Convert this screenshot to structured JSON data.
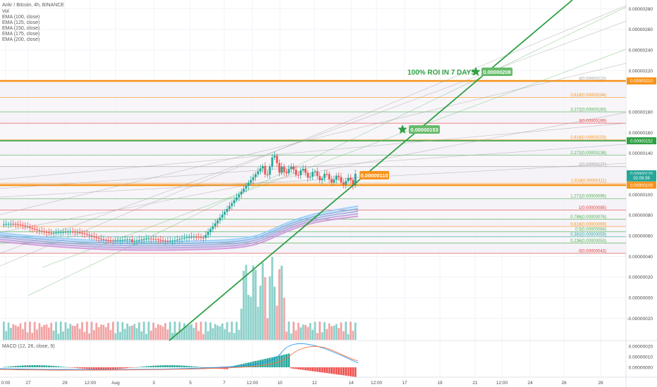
{
  "chart_data": {
    "type": "candlestick",
    "title": "Ankr / Bitcoin, 4h, BINANCE",
    "indicators": [
      "Vol",
      "EMA (100, close)",
      "EMA (125, close)",
      "EMA (150, close)",
      "EMA (175, close)",
      "EMA (200, close)"
    ],
    "macd_label": "MACD (12, 26, close, 9)",
    "price_axis": {
      "ticks": [
        "0.00000280",
        "0.00000260",
        "0.00000240",
        "0.00000220",
        "0.00000180",
        "0.00000160",
        "0.00000140",
        "0.00000100",
        "0.00000080",
        "0.00000060",
        "0.00000040",
        "0.00000020",
        "0.00000000",
        "-0.00000020"
      ],
      "tick_values": [
        280,
        260,
        240,
        220,
        180,
        160,
        140,
        100,
        80,
        60,
        40,
        20,
        0,
        -20
      ]
    },
    "macd_axis": {
      "ticks": [
        "0.00000020",
        "0.00000010",
        "0.00000000"
      ],
      "tick_values": [
        20,
        10,
        0
      ]
    },
    "time_axis": {
      "ticks": [
        "0:00",
        "27",
        "29",
        "12:00",
        "Aug",
        "3",
        "5",
        "7",
        "12:00",
        "10",
        "12",
        "14",
        "12:00",
        "17",
        "19",
        "21",
        "12:00",
        "24",
        "26",
        "28"
      ]
    },
    "price_badges": [
      {
        "label": "0.00000210",
        "value": 210,
        "color": "#f7931a"
      },
      {
        "label": "0.00000152",
        "value": 152,
        "color": "#2ea043"
      },
      {
        "label": "0.00000120",
        "value": 120,
        "color": "#26a69a"
      },
      {
        "label": "02:09:39",
        "value": 116,
        "color": "#26a69a"
      },
      {
        "label": "0.00000109",
        "value": 109,
        "color": "#f7931a"
      }
    ],
    "fib_levels": [
      {
        "label": "4(0.00000210)",
        "value": 210,
        "color": "#a0a0a0"
      },
      {
        "label": "3.618(0.00000194)",
        "value": 194,
        "color": "#f7931a"
      },
      {
        "label": "3.272(0.00000180)",
        "value": 180,
        "color": "#4caf50"
      },
      {
        "label": "3(0.00000169)",
        "value": 169,
        "color": "#e53935"
      },
      {
        "label": "2.618(0.00000153)",
        "value": 153,
        "color": "#f7931a"
      },
      {
        "label": "2.272(0.00000138)",
        "value": 138,
        "color": "#4caf50"
      },
      {
        "label": "2(0.00000127)",
        "value": 127,
        "color": "#9e9e9e"
      },
      {
        "label": "1.618(0.00000111)",
        "value": 111,
        "color": "#f7931a"
      },
      {
        "label": "1.272(0.00000096)",
        "value": 96,
        "color": "#4caf50"
      },
      {
        "label": "1(0.00000085)",
        "value": 85,
        "color": "#e53935"
      },
      {
        "label": "0.786(0.00000076)",
        "value": 76,
        "color": "#4caf50"
      },
      {
        "label": "0.618(0.00000069)",
        "value": 69,
        "color": "#f7931a"
      },
      {
        "label": "0.5(0.00000064)",
        "value": 64,
        "color": "#4caf50"
      },
      {
        "label": "0.382(0.00000059)",
        "value": 59,
        "color": "#26a69a"
      },
      {
        "label": "0.236(0.00000053)",
        "value": 53,
        "color": "#4caf50"
      },
      {
        "label": "0(0.00000043)",
        "value": 43,
        "color": "#e53935"
      }
    ],
    "annotations": [
      {
        "text": "100% ROI IN 7 DAYS",
        "target_label": "0.00000208",
        "target_value": 208
      },
      {
        "text": "",
        "target_label": "0.00000153",
        "target_value": 153
      },
      {
        "text": "",
        "target_label": "0.00000110",
        "target_value": 110
      }
    ],
    "colors": {
      "up": "#26a69a",
      "down": "#ef5350",
      "target_line": "#2ea043",
      "fib_highlight": "#f7931a"
    }
  }
}
